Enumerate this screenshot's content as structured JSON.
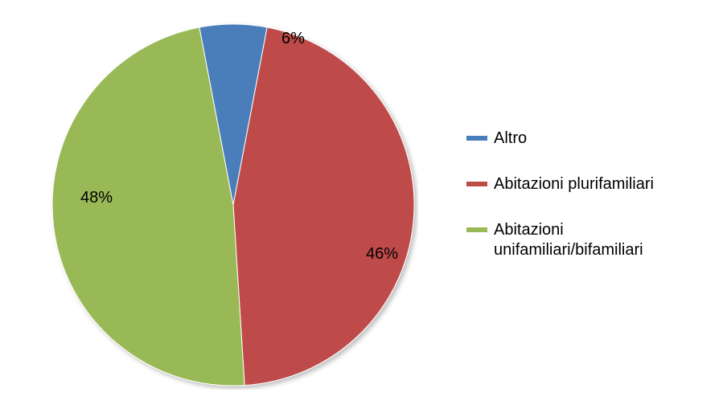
{
  "chart": {
    "type": "pie",
    "background_color": "#ffffff",
    "slices": [
      {
        "label": "Altro",
        "value": 6,
        "percent_text": "6%",
        "color": "#4a7ebb"
      },
      {
        "label": "Abitazioni plurifamiliari",
        "value": 46,
        "percent_text": "46%",
        "color": "#be4b48"
      },
      {
        "label": "Abitazioni unifamiliari/bifamiliari",
        "value": 48,
        "percent_text": "48%",
        "color": "#98b954"
      }
    ],
    "label_fontsize": 20,
    "legend_fontsize": 20,
    "legend_marker_width": 26,
    "legend_marker_height": 6,
    "start_angle_deg": -90,
    "start_offset_deg": -10.8,
    "slice_border_color": "#ffffff",
    "slice_border_width": 1
  }
}
